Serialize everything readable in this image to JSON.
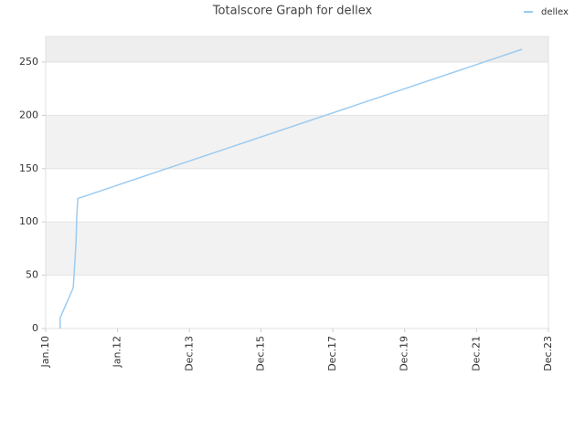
{
  "chart_data": {
    "type": "line",
    "title": "Totalscore Graph for dellex",
    "x": [
      2010.4,
      2010.4,
      2010.76,
      2010.78,
      2010.81,
      2010.84,
      2010.86,
      2010.89,
      2023.19
    ],
    "series": [
      {
        "name": "dellex",
        "color": "#9ccbf0",
        "values": [
          0,
          10,
          38,
          47,
          64,
          81,
          105,
          122,
          262
        ]
      }
    ],
    "xlim": [
      2010.0,
      2023.92
    ],
    "xticks": [
      {
        "value": 2010.0,
        "label": "Jan.10"
      },
      {
        "value": 2011.99,
        "label": "Jan.12"
      },
      {
        "value": 2013.98,
        "label": "Dec.13"
      },
      {
        "value": 2015.96,
        "label": "Dec.15"
      },
      {
        "value": 2017.95,
        "label": "Dec.17"
      },
      {
        "value": 2019.94,
        "label": "Dec.19"
      },
      {
        "value": 2021.93,
        "label": "Dec.21"
      },
      {
        "value": 2023.92,
        "label": "Dec.23"
      }
    ],
    "ylim": [
      0,
      274
    ],
    "yticks": [
      0,
      50,
      100,
      150,
      200,
      250
    ],
    "grid": true,
    "legend": "top-right"
  }
}
